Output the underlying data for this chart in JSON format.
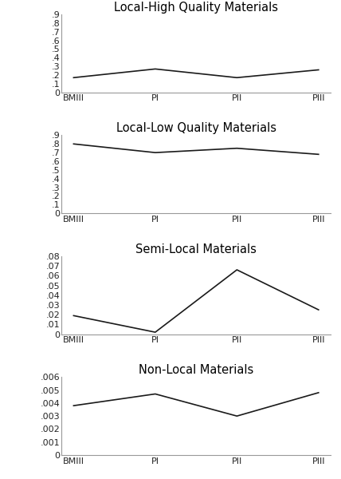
{
  "charts": [
    {
      "title": "Local-High Quality Materials",
      "x_labels": [
        "BMIII",
        "PI",
        "PII",
        "PIII"
      ],
      "y_values": [
        0.17,
        0.27,
        0.17,
        0.26
      ],
      "ylim": [
        0,
        0.9
      ],
      "yticks": [
        0,
        0.1,
        0.2,
        0.3,
        0.4,
        0.5,
        0.6,
        0.7,
        0.8,
        0.9
      ],
      "yticklabels": [
        "0",
        ".1",
        ".2",
        ".3",
        ".4",
        ".5",
        ".6",
        ".7",
        ".8",
        ".9"
      ]
    },
    {
      "title": "Local-Low Quality Materials",
      "x_labels": [
        "BMIII",
        "PI",
        "PII",
        "PIII"
      ],
      "y_values": [
        0.8,
        0.7,
        0.75,
        0.68
      ],
      "ylim": [
        0,
        0.9
      ],
      "yticks": [
        0,
        0.1,
        0.2,
        0.3,
        0.4,
        0.5,
        0.6,
        0.7,
        0.8,
        0.9
      ],
      "yticklabels": [
        "0",
        ".1",
        ".2",
        ".3",
        ".4",
        ".5",
        ".6",
        ".7",
        ".8",
        ".9"
      ]
    },
    {
      "title": "Semi-Local Materials",
      "x_labels": [
        "BMIII",
        "PI",
        "PII",
        "PIII"
      ],
      "y_values": [
        0.019,
        0.002,
        0.066,
        0.025
      ],
      "ylim": [
        0,
        0.08
      ],
      "yticks": [
        0,
        0.01,
        0.02,
        0.03,
        0.04,
        0.05,
        0.06,
        0.07,
        0.08
      ],
      "yticklabels": [
        "0",
        ".01",
        ".02",
        ".03",
        ".04",
        ".05",
        ".06",
        ".07",
        ".08"
      ]
    },
    {
      "title": "Non-Local Materials",
      "x_labels": [
        "BMIII",
        "PI",
        "PII",
        "PIII"
      ],
      "y_values": [
        0.0038,
        0.0047,
        0.003,
        0.0048
      ],
      "ylim": [
        0,
        0.006
      ],
      "yticks": [
        0,
        0.001,
        0.002,
        0.003,
        0.004,
        0.005,
        0.006
      ],
      "yticklabels": [
        "0",
        ".001",
        ".002",
        ".003",
        ".004",
        ".005",
        ".006"
      ]
    }
  ],
  "line_color": "#1a1a1a",
  "background_color": "#ffffff",
  "title_fontsize": 10.5,
  "tick_fontsize": 8,
  "spine_color": "#999999"
}
